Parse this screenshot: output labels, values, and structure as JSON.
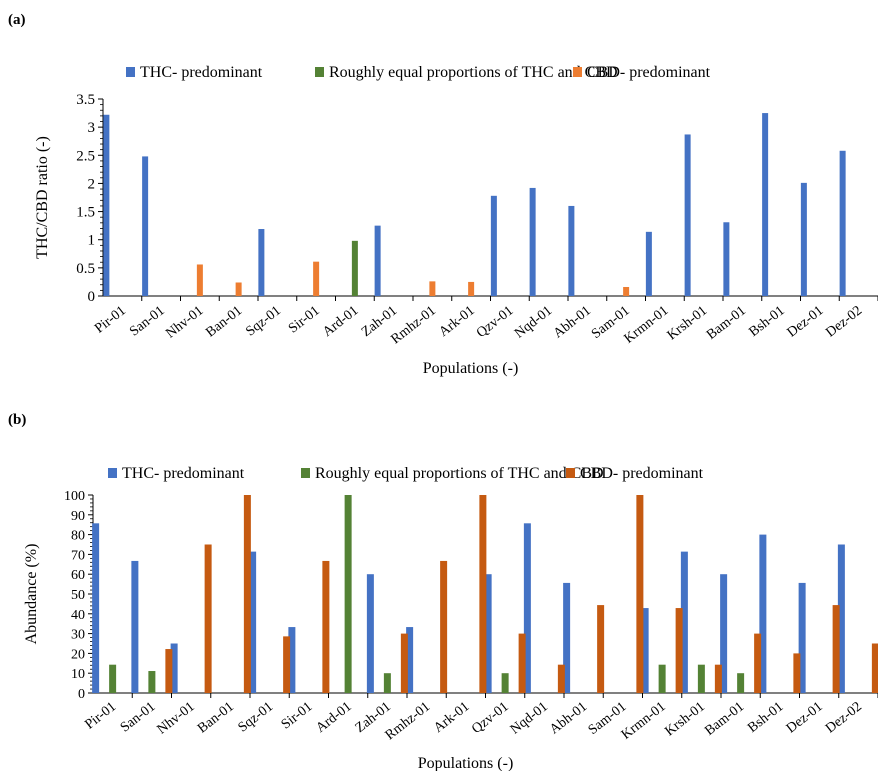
{
  "panels": {
    "a_label": "(a)",
    "b_label": "(b)"
  },
  "chart_data": [
    {
      "type": "bar",
      "categories": [
        "Pir-01",
        "San-01",
        "Nhv-01",
        "Ban-01",
        "Sqz-01",
        "Sir-01",
        "Ard-01",
        "Zah-01",
        "Rmhz-01",
        "Ark-01",
        "Qzv-01",
        "Nqd-01",
        "Abh-01",
        "Sam-01",
        "Krmn-01",
        "Krsh-01",
        "Bam-01",
        "Bsh-01",
        "Dez-01",
        "Dez-02"
      ],
      "xlabel": "Populations (-)",
      "ylabel": "THC/CBD ratio (-)",
      "ylim": [
        0,
        3.5
      ],
      "yticks": [
        "0",
        "0.5",
        "1",
        "1.5",
        "2",
        "2.5",
        "3",
        "3.5"
      ],
      "legend": "top",
      "grid": false,
      "series": [
        {
          "name": "THC- predominant",
          "color": "#4472C4",
          "values": [
            3.22,
            2.48,
            null,
            null,
            1.19,
            null,
            null,
            1.25,
            null,
            null,
            1.78,
            1.92,
            1.6,
            null,
            1.14,
            2.87,
            1.31,
            3.25,
            2.01,
            2.58
          ]
        },
        {
          "name": "Roughly equal proportions of THC and CBD",
          "color": "#548235",
          "values": [
            null,
            null,
            null,
            null,
            null,
            null,
            0.98,
            null,
            null,
            null,
            null,
            null,
            null,
            null,
            null,
            null,
            null,
            null,
            null,
            null
          ]
        },
        {
          "name": "CBD- predominant",
          "color": "#ED7D31",
          "values": [
            null,
            null,
            0.56,
            0.24,
            null,
            0.61,
            null,
            null,
            0.26,
            0.25,
            null,
            null,
            null,
            0.16,
            null,
            null,
            null,
            null,
            null,
            null
          ]
        }
      ]
    },
    {
      "type": "bar",
      "categories": [
        "Pir-01",
        "San-01",
        "Nhv-01",
        "Ban-01",
        "Sqz-01",
        "Sir-01",
        "Ard-01",
        "Zah-01",
        "Rmhz-01",
        "Ark-01",
        "Qzv-01",
        "Nqd-01",
        "Abh-01",
        "Sam-01",
        "Krmn-01",
        "Krsh-01",
        "Bam-01",
        "Bsh-01",
        "Dez-01",
        "Dez-02"
      ],
      "xlabel": "Populations (-)",
      "ylabel": "Abundance (%)",
      "ylim": [
        0,
        100
      ],
      "yticks": [
        "0",
        "10",
        "20",
        "30",
        "40",
        "50",
        "60",
        "70",
        "80",
        "90",
        "100"
      ],
      "legend": "top",
      "grid": false,
      "series": [
        {
          "name": "THC- predominant",
          "color": "#4472C4",
          "values": [
            85.7,
            66.7,
            25,
            0,
            71.4,
            33.3,
            0,
            60,
            33.3,
            0,
            60,
            85.7,
            55.6,
            0,
            42.9,
            71.4,
            60,
            80,
            55.6,
            75
          ]
        },
        {
          "name": "Roughly equal proportions of THC and CBD",
          "color": "#548235",
          "values": [
            14.3,
            11.1,
            0,
            0,
            0,
            0,
            100,
            10,
            0,
            0,
            10,
            0,
            0,
            0,
            14.3,
            14.3,
            10,
            0,
            0,
            0
          ]
        },
        {
          "name": "CBD- predominant",
          "color": "#C55A11",
          "values": [
            0,
            22.2,
            75,
            100,
            28.6,
            66.7,
            0,
            30,
            66.7,
            100,
            30,
            14.3,
            44.4,
            100,
            42.9,
            14.3,
            30,
            20,
            44.4,
            25
          ]
        }
      ]
    }
  ]
}
